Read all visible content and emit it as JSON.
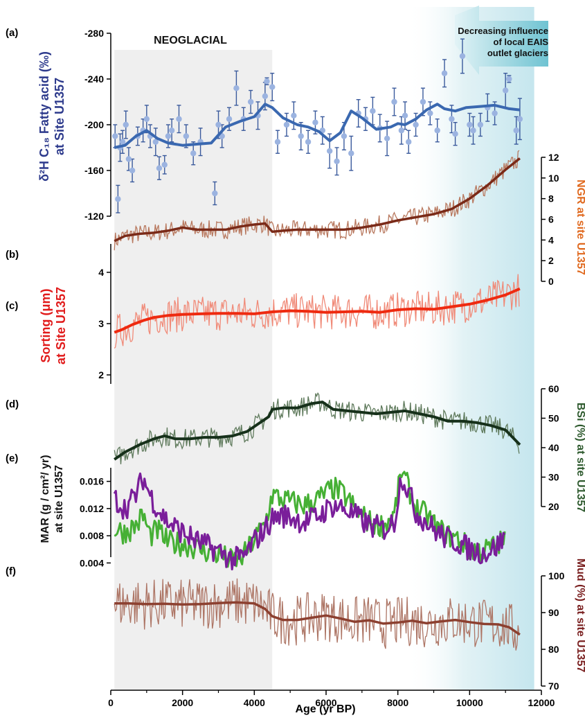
{
  "chart_data": {
    "type": "line",
    "xlabel": "Age (yr BP)",
    "xlim": [
      0,
      12000
    ],
    "xticks": [
      "0",
      "2000",
      "4000",
      "6000",
      "8000",
      "10000",
      "12000"
    ],
    "annotations": {
      "neoglacial": "NEOGLACIAL",
      "neoglacial_range": [
        100,
        4500
      ],
      "glacier_note": [
        "Decreasing influence",
        "of local EAIS",
        "outlet glaciers"
      ],
      "glacier_shade_range": [
        9000,
        11800
      ]
    },
    "colors": {
      "dH_points": "#9bb3e0",
      "dH_bars": "#3a5a9c",
      "dH_smooth": "#3a68b0",
      "ngr_raw": "#b8785e",
      "ngr_smooth": "#7a2a18",
      "sort_raw": "#f08a78",
      "sort_smooth": "#ee2a10",
      "bsi_raw": "#5f7a5c",
      "bsi_smooth": "#16301a",
      "mar_green": "#46b035",
      "mar_purple": "#7a1e9a",
      "mud_raw": "#ad7565",
      "mud_smooth": "#8c4030",
      "neoglacial_shade": "#efefef",
      "glacier_shade": "#cfe9ef"
    },
    "panels": [
      {
        "id": "a",
        "panel_label": "(a)",
        "ylabel": [
          "δ²H C₁₈ Fatty acid (‰)",
          "at Site U1357"
        ],
        "ylim": [
          -120,
          -280
        ],
        "yticks": [
          "-280",
          "-240",
          "-200",
          "-160",
          "-120"
        ],
        "axis": "left",
        "smooth": {
          "x": [
            100,
            400,
            700,
            1000,
            1300,
            1600,
            2000,
            2400,
            2800,
            3200,
            3600,
            4000,
            4300,
            4500,
            4800,
            5200,
            5500,
            5800,
            6100,
            6400,
            6700,
            7000,
            7400,
            7800,
            8000,
            8200,
            8500,
            8800,
            9100,
            9300,
            9600,
            9900,
            10300,
            10700,
            11100,
            11400
          ],
          "y": [
            -180,
            -182,
            -190,
            -195,
            -188,
            -184,
            -182,
            -183,
            -184,
            -198,
            -203,
            -207,
            -218,
            -215,
            -206,
            -200,
            -198,
            -194,
            -186,
            -193,
            -212,
            -206,
            -196,
            -198,
            -201,
            -200,
            -205,
            -213,
            -218,
            -214,
            -212,
            -215,
            -216,
            -217,
            -214,
            -213
          ]
        },
        "points": [
          [
            120,
            -190,
            10
          ],
          [
            200,
            -135,
            12
          ],
          [
            260,
            -180,
            12
          ],
          [
            330,
            -185,
            10
          ],
          [
            420,
            -200,
            12
          ],
          [
            500,
            -170,
            10
          ],
          [
            600,
            -160,
            10
          ],
          [
            750,
            -190,
            8
          ],
          [
            900,
            -195,
            10
          ],
          [
            1000,
            -205,
            12
          ],
          [
            1100,
            -190,
            10
          ],
          [
            1250,
            -185,
            12
          ],
          [
            1350,
            -162,
            10
          ],
          [
            1500,
            -165,
            8
          ],
          [
            1600,
            -190,
            10
          ],
          [
            1700,
            -195,
            10
          ],
          [
            1900,
            -205,
            12
          ],
          [
            2100,
            -190,
            10
          ],
          [
            2300,
            -175,
            10
          ],
          [
            2500,
            -185,
            12
          ],
          [
            2900,
            -140,
            10
          ],
          [
            3000,
            -200,
            12
          ],
          [
            3100,
            -190,
            10
          ],
          [
            3300,
            -205,
            10
          ],
          [
            3500,
            -232,
            15
          ],
          [
            3700,
            -205,
            10
          ],
          [
            3900,
            -220,
            10
          ],
          [
            4100,
            -208,
            12
          ],
          [
            4300,
            -225,
            12
          ],
          [
            4350,
            -238,
            3
          ],
          [
            4500,
            -233,
            12
          ],
          [
            4650,
            -185,
            10
          ],
          [
            4900,
            -200,
            10
          ],
          [
            5100,
            -208,
            12
          ],
          [
            5300,
            -190,
            12
          ],
          [
            5500,
            -185,
            10
          ],
          [
            5700,
            -202,
            10
          ],
          [
            5900,
            -195,
            12
          ],
          [
            6100,
            -177,
            15
          ],
          [
            6300,
            -168,
            12
          ],
          [
            6500,
            -190,
            12
          ],
          [
            6700,
            -175,
            15
          ],
          [
            6900,
            -210,
            12
          ],
          [
            7100,
            -205,
            10
          ],
          [
            7300,
            -212,
            12
          ],
          [
            7500,
            -197,
            12
          ],
          [
            7700,
            -188,
            15
          ],
          [
            7900,
            -220,
            12
          ],
          [
            8100,
            -195,
            12
          ],
          [
            8200,
            -208,
            12
          ],
          [
            8300,
            -185,
            10
          ],
          [
            8500,
            -200,
            10
          ],
          [
            8700,
            -220,
            12
          ],
          [
            8900,
            -210,
            10
          ],
          [
            9100,
            -195,
            10
          ],
          [
            9300,
            -245,
            12
          ],
          [
            9500,
            -205,
            12
          ],
          [
            9600,
            -192,
            10
          ],
          [
            9800,
            -260,
            15
          ],
          [
            10000,
            -200,
            10
          ],
          [
            10100,
            -195,
            12
          ],
          [
            10300,
            -200,
            10
          ],
          [
            10500,
            -215,
            12
          ],
          [
            10700,
            -210,
            10
          ],
          [
            11000,
            -230,
            15
          ],
          [
            11100,
            -240,
            3
          ],
          [
            11300,
            -195,
            12
          ],
          [
            11400,
            -205,
            18
          ]
        ]
      },
      {
        "id": "b",
        "panel_label": "(b)",
        "ylabel": [
          "NGR at site U1357"
        ],
        "ylim": [
          0,
          12
        ],
        "yticks": [
          "0",
          "2",
          "4",
          "6",
          "8",
          "10",
          "12"
        ],
        "axis": "right",
        "smooth": {
          "x": [
            100,
            400,
            800,
            1200,
            1600,
            2000,
            2400,
            2800,
            3200,
            3600,
            4000,
            4300,
            4500,
            4800,
            5200,
            5600,
            6000,
            6500,
            7000,
            7500,
            8000,
            8500,
            9000,
            9500,
            10000,
            10500,
            11000,
            11400
          ],
          "y": [
            3.9,
            4.4,
            4.6,
            4.7,
            4.9,
            5.2,
            5.0,
            5.0,
            5.0,
            5.3,
            5.5,
            5.6,
            4.8,
            4.9,
            5.0,
            5.0,
            5.0,
            5.0,
            5.2,
            5.5,
            5.9,
            6.2,
            6.5,
            7.0,
            8.0,
            9.3,
            10.8,
            11.9
          ]
        },
        "noise": 0.9,
        "step": 30
      },
      {
        "id": "c",
        "panel_label": "(c)",
        "ylabel": [
          "Sorting (μm)",
          "at Site U1357"
        ],
        "ylim": [
          2,
          4
        ],
        "yticks": [
          "2",
          "3",
          "4"
        ],
        "axis": "left",
        "smooth": {
          "x": [
            100,
            300,
            600,
            900,
            1200,
            1600,
            2000,
            2500,
            3000,
            3500,
            4000,
            4500,
            5000,
            5500,
            6000,
            6500,
            7000,
            7500,
            8000,
            8500,
            9000,
            9500,
            10000,
            10500,
            11000,
            11400
          ],
          "y": [
            2.83,
            2.88,
            2.98,
            3.06,
            3.12,
            3.16,
            3.18,
            3.19,
            3.2,
            3.2,
            3.19,
            3.23,
            3.25,
            3.24,
            3.22,
            3.23,
            3.24,
            3.22,
            3.27,
            3.29,
            3.28,
            3.33,
            3.38,
            3.46,
            3.56,
            3.68
          ]
        },
        "noise": 0.35,
        "step": 30
      },
      {
        "id": "d",
        "panel_label": "(d)",
        "ylabel": [
          "BSi (%) at site U1357"
        ],
        "ylim": [
          20,
          60
        ],
        "yticks": [
          "20",
          "30",
          "40",
          "50",
          "60"
        ],
        "axis": "right",
        "smooth": {
          "x": [
            100,
            400,
            800,
            1200,
            1500,
            1800,
            2200,
            2600,
            3000,
            3400,
            3800,
            4100,
            4400,
            4500,
            4800,
            5200,
            5600,
            5900,
            6200,
            6600,
            7000,
            7400,
            7800,
            8200,
            8600,
            9000,
            9400,
            9800,
            10200,
            10600,
            11000,
            11400
          ],
          "y": [
            36.0,
            38.5,
            41.0,
            43.0,
            44.0,
            43.0,
            43.0,
            43.5,
            43.5,
            44.0,
            45.5,
            48.0,
            50.5,
            53.0,
            53.5,
            53.5,
            55.0,
            55.5,
            53.0,
            52.5,
            52.0,
            51.5,
            52.0,
            52.5,
            51.5,
            50.5,
            49.0,
            49.0,
            48.5,
            47.5,
            46.0,
            41.0
          ]
        },
        "noise": 3.5,
        "step": 30
      },
      {
        "id": "e",
        "panel_label": "(e)",
        "ylabel": [
          "MAR (g / cm²/ yr)",
          "at site U1357"
        ],
        "ylim": [
          0.002,
          0.018
        ],
        "yticks": [
          "0.004",
          "0.008",
          "0.012",
          "0.016"
        ],
        "axis": "left",
        "series": [
          {
            "x": [
              100,
              400,
              700,
              900,
              1100,
              1300,
              1600,
              2000,
              2400,
              2800,
              3100,
              3400,
              3700,
              4000,
              4300,
              4500,
              4700,
              5000,
              5400,
              5800,
              6200,
              6500,
              6800,
              7200,
              7600,
              7900,
              8100,
              8300,
              8500,
              8800,
              9100,
              9400,
              9700,
              10000,
              10400,
              10700,
              11000
            ],
            "y": [
              0.009,
              0.0085,
              0.0095,
              0.011,
              0.008,
              0.0088,
              0.007,
              0.0068,
              0.0062,
              0.0055,
              0.005,
              0.0042,
              0.005,
              0.0075,
              0.0098,
              0.014,
              0.0135,
              0.013,
              0.0125,
              0.0135,
              0.015,
              0.014,
              0.012,
              0.01,
              0.0095,
              0.011,
              0.0175,
              0.015,
              0.012,
              0.011,
              0.009,
              0.008,
              0.0075,
              0.006,
              0.0058,
              0.0065,
              0.0075
            ]
          },
          {
            "x": [
              100,
              400,
              700,
              900,
              1100,
              1300,
              1600,
              2000,
              2400,
              2800,
              3100,
              3400,
              3700,
              4000,
              4300,
              4500,
              4700,
              5000,
              5400,
              5800,
              6200,
              6500,
              6800,
              7200,
              7600,
              7900,
              8100,
              8300,
              8500,
              8800,
              9100,
              9400,
              9700,
              10000,
              10400,
              10700,
              11000
            ],
            "y": [
              0.0135,
              0.012,
              0.014,
              0.0165,
              0.014,
              0.012,
              0.01,
              0.0085,
              0.0072,
              0.0062,
              0.0055,
              0.0045,
              0.0048,
              0.0072,
              0.009,
              0.0105,
              0.011,
              0.0108,
              0.01,
              0.011,
              0.0125,
              0.012,
              0.011,
              0.0095,
              0.009,
              0.01,
              0.017,
              0.0145,
              0.0115,
              0.01,
              0.0085,
              0.0075,
              0.007,
              0.006,
              0.0055,
              0.0062,
              0.0078
            ]
          }
        ],
        "noise": 0.0018,
        "step": 40
      },
      {
        "id": "f",
        "panel_label": "(f)",
        "ylabel": [
          "Mud (%) at site U1357"
        ],
        "ylim": [
          70,
          100
        ],
        "yticks": [
          "70",
          "80",
          "90",
          "100"
        ],
        "axis": "right",
        "smooth": {
          "x": [
            100,
            500,
            1000,
            1500,
            2000,
            2500,
            3000,
            3500,
            4000,
            4300,
            4500,
            4800,
            5200,
            5600,
            6000,
            6400,
            6800,
            7200,
            7600,
            8000,
            8400,
            8800,
            9200,
            9600,
            10000,
            10400,
            10800,
            11100,
            11400
          ],
          "y": [
            92.5,
            92.5,
            92.3,
            92.4,
            92.2,
            92.3,
            92.6,
            92.8,
            92.5,
            91.0,
            89.0,
            88.0,
            88.0,
            88.6,
            89.2,
            88.4,
            87.5,
            87.9,
            87.0,
            87.3,
            87.8,
            87.1,
            87.6,
            88.0,
            87.4,
            86.9,
            86.8,
            86.0,
            84.0
          ]
        },
        "noise": 7.0,
        "step": 30
      }
    ]
  }
}
